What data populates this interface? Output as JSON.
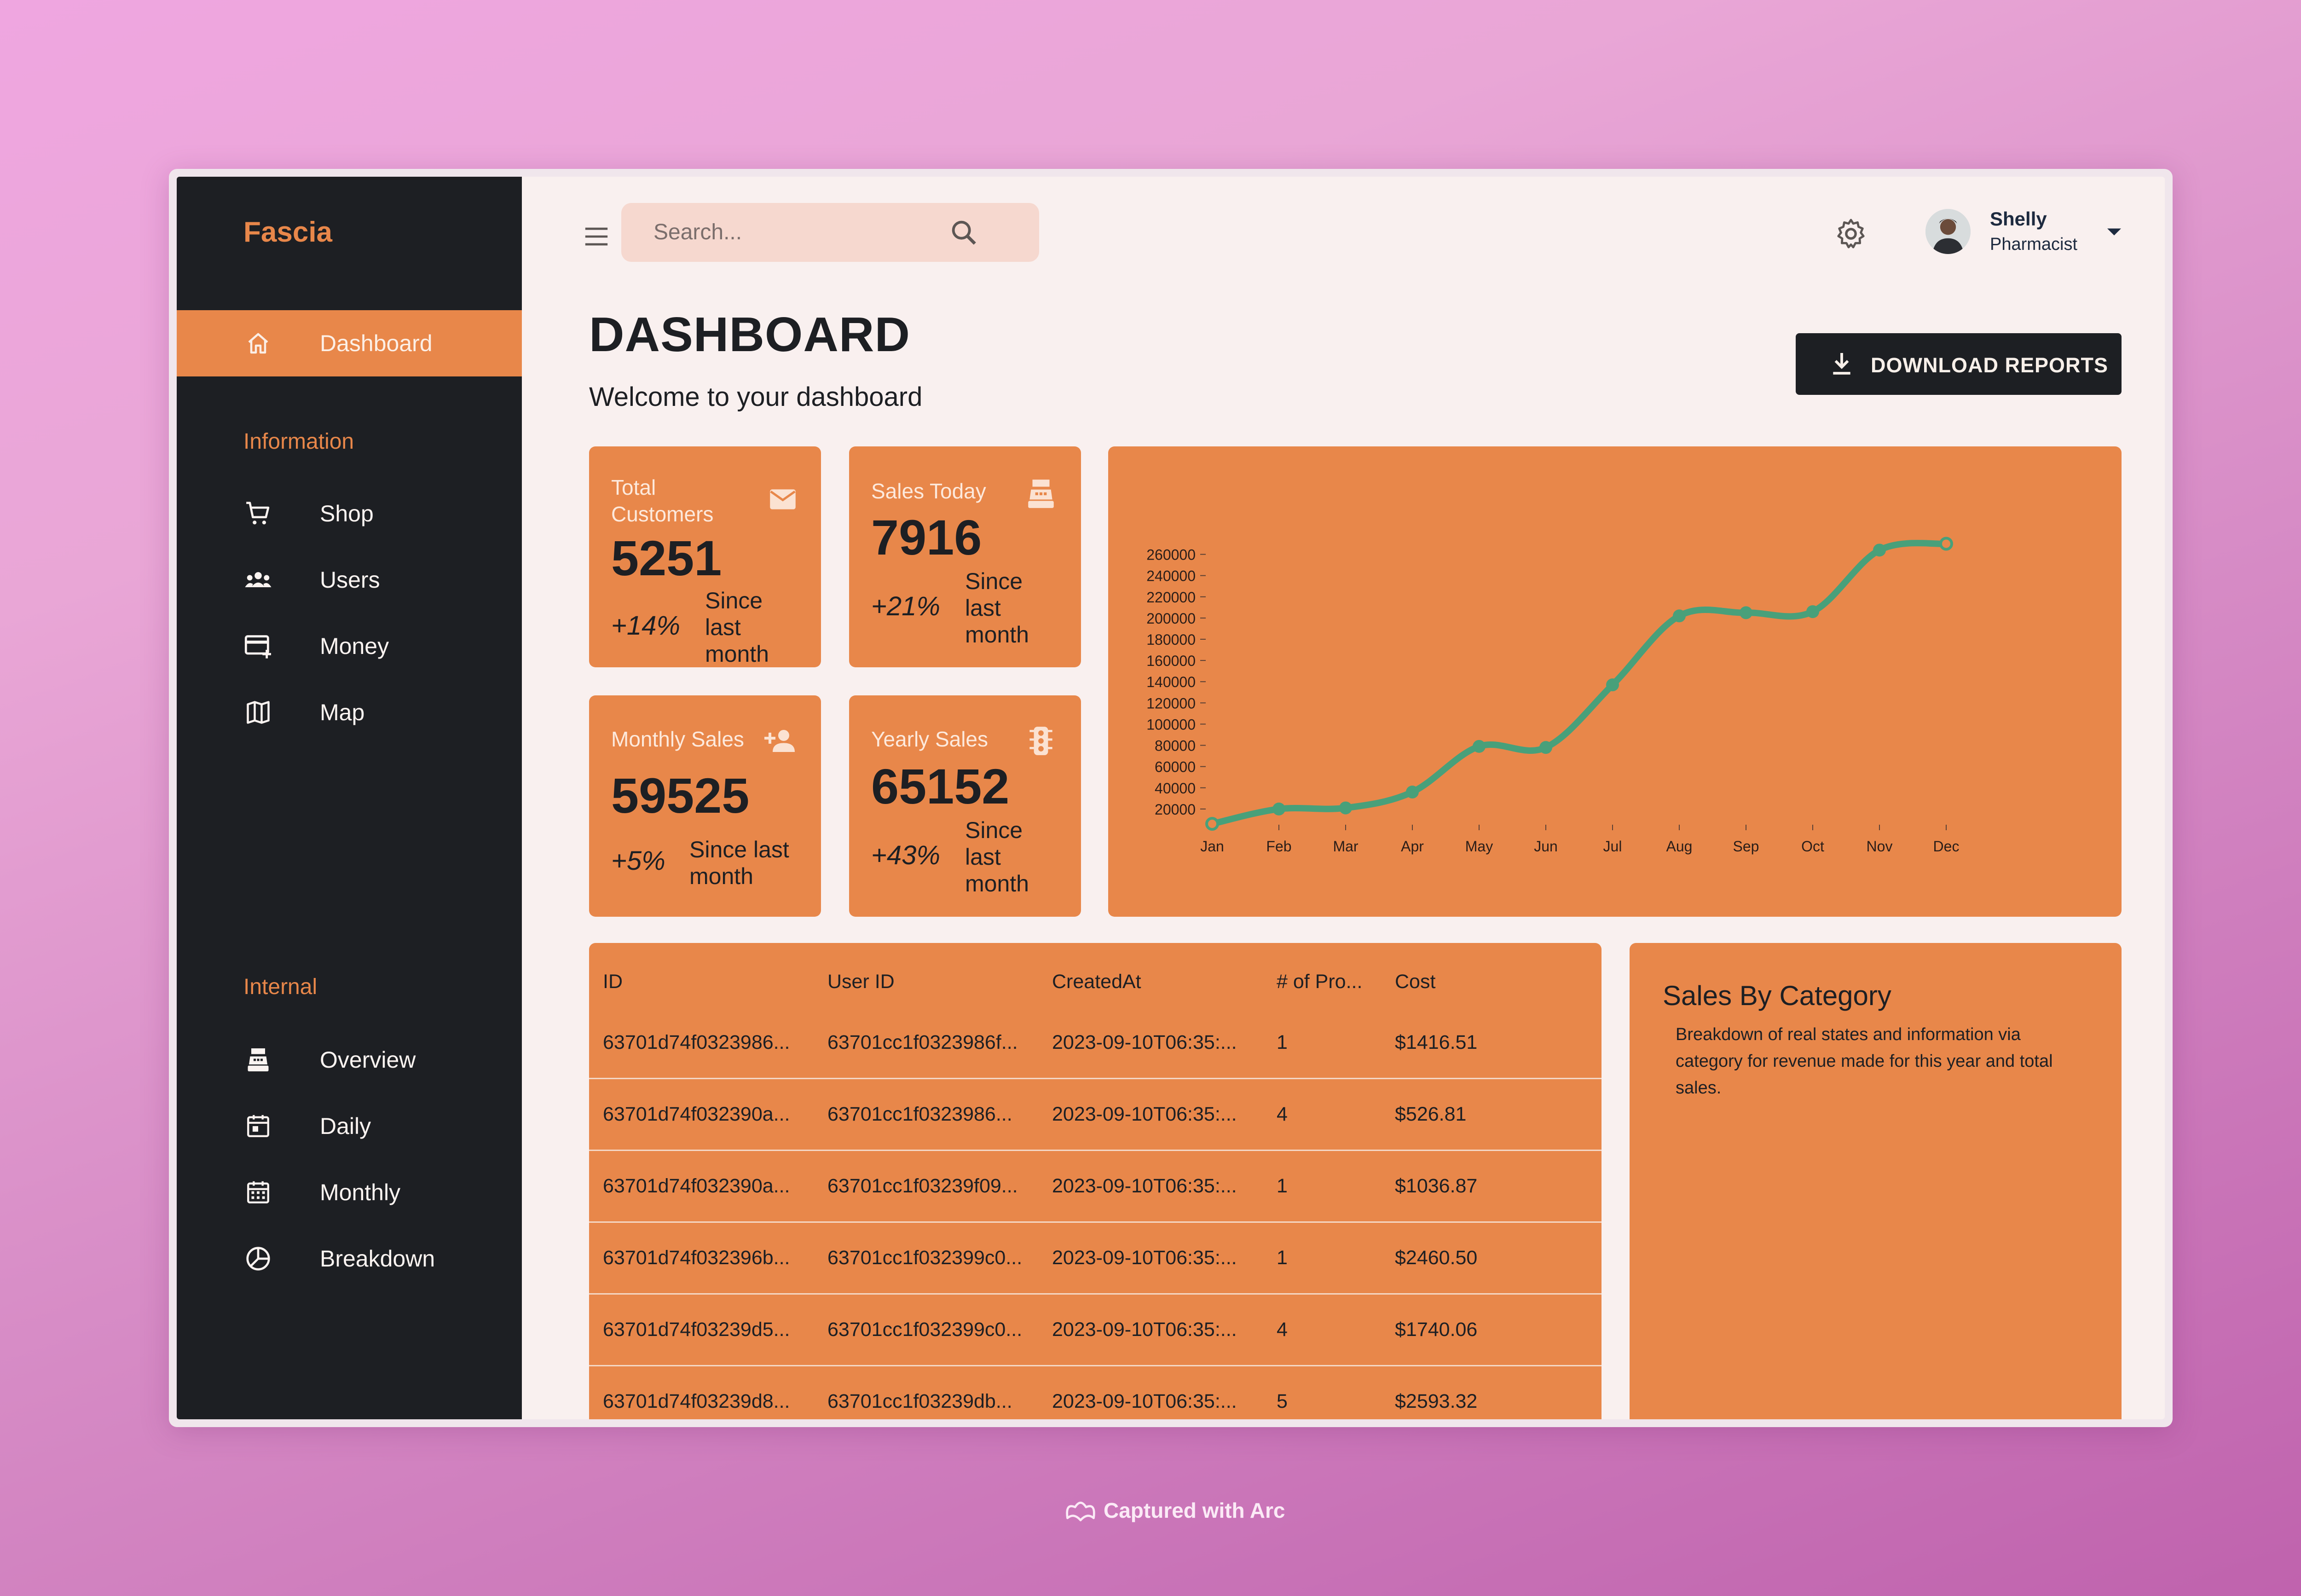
{
  "brand": "Fascia",
  "nav": {
    "dashboard": "Dashboard",
    "section_information": "Information",
    "shop": "Shop",
    "users": "Users",
    "money": "Money",
    "map": "Map",
    "section_internal": "Internal",
    "overview": "Overview",
    "daily": "Daily",
    "monthly": "Monthly",
    "breakdown": "Breakdown"
  },
  "topbar": {
    "search_placeholder": "Search...",
    "user_name": "Shelly",
    "user_role": "Pharmacist"
  },
  "header": {
    "title": "DASHBOARD",
    "subtitle": "Welcome to your dashboard",
    "download_label": "DOWNLOAD REPORTS"
  },
  "stats": {
    "total_customers": {
      "title": "Total Customers",
      "value": "5251",
      "pct": "+14%",
      "since": "Since last month"
    },
    "sales_today": {
      "title": "Sales Today",
      "value": "7916",
      "pct": "+21%",
      "since": "Since last month"
    },
    "monthly_sales": {
      "title": "Monthly Sales",
      "value": "59525",
      "pct": "+5%",
      "since": "Since last month"
    },
    "yearly_sales": {
      "title": "Yearly Sales",
      "value": "65152",
      "pct": "+43%",
      "since": "Since last month"
    }
  },
  "chart_data": {
    "type": "line",
    "title": "",
    "xlabel": "",
    "ylabel": "",
    "categories": [
      "Jan",
      "Feb",
      "Mar",
      "Apr",
      "May",
      "Jun",
      "Jul",
      "Aug",
      "Sep",
      "Oct",
      "Nov",
      "Dec"
    ],
    "series": [
      {
        "values": [
          6000,
          20000,
          21000,
          36000,
          79000,
          78000,
          137000,
          202000,
          205000,
          206000,
          264000,
          270000
        ]
      }
    ],
    "yticks": [
      20000,
      40000,
      60000,
      80000,
      100000,
      120000,
      140000,
      160000,
      180000,
      200000,
      220000,
      240000,
      260000
    ],
    "ylim": [
      0,
      275000
    ],
    "grid": false,
    "line_color": "#48a07a"
  },
  "table": {
    "headers": [
      "ID",
      "User ID",
      "CreatedAt",
      "# of Pro...",
      "Cost"
    ],
    "rows": [
      [
        "63701d74f0323986...",
        "63701cc1f0323986f...",
        "2023-09-10T06:35:...",
        "1",
        "$1416.51"
      ],
      [
        "63701d74f032390a...",
        "63701cc1f0323986...",
        "2023-09-10T06:35:...",
        "4",
        "$526.81"
      ],
      [
        "63701d74f032390a...",
        "63701cc1f03239f09...",
        "2023-09-10T06:35:...",
        "1",
        "$1036.87"
      ],
      [
        "63701d74f032396b...",
        "63701cc1f032399c0...",
        "2023-09-10T06:35:...",
        "1",
        "$2460.50"
      ],
      [
        "63701d74f03239d5...",
        "63701cc1f032399c0...",
        "2023-09-10T06:35:...",
        "4",
        "$1740.06"
      ],
      [
        "63701d74f03239d8...",
        "63701cc1f03239db...",
        "2023-09-10T06:35:...",
        "5",
        "$2593.32"
      ]
    ]
  },
  "category": {
    "title": "Sales By Category",
    "description": "Breakdown of real states and information via category for revenue made for this year and total sales."
  },
  "footer": "Captured with Arc",
  "colors": {
    "accent": "#e8874a",
    "sidebar": "#1d1f23",
    "content_bg": "#f9f0ef",
    "line": "#48a07a"
  }
}
